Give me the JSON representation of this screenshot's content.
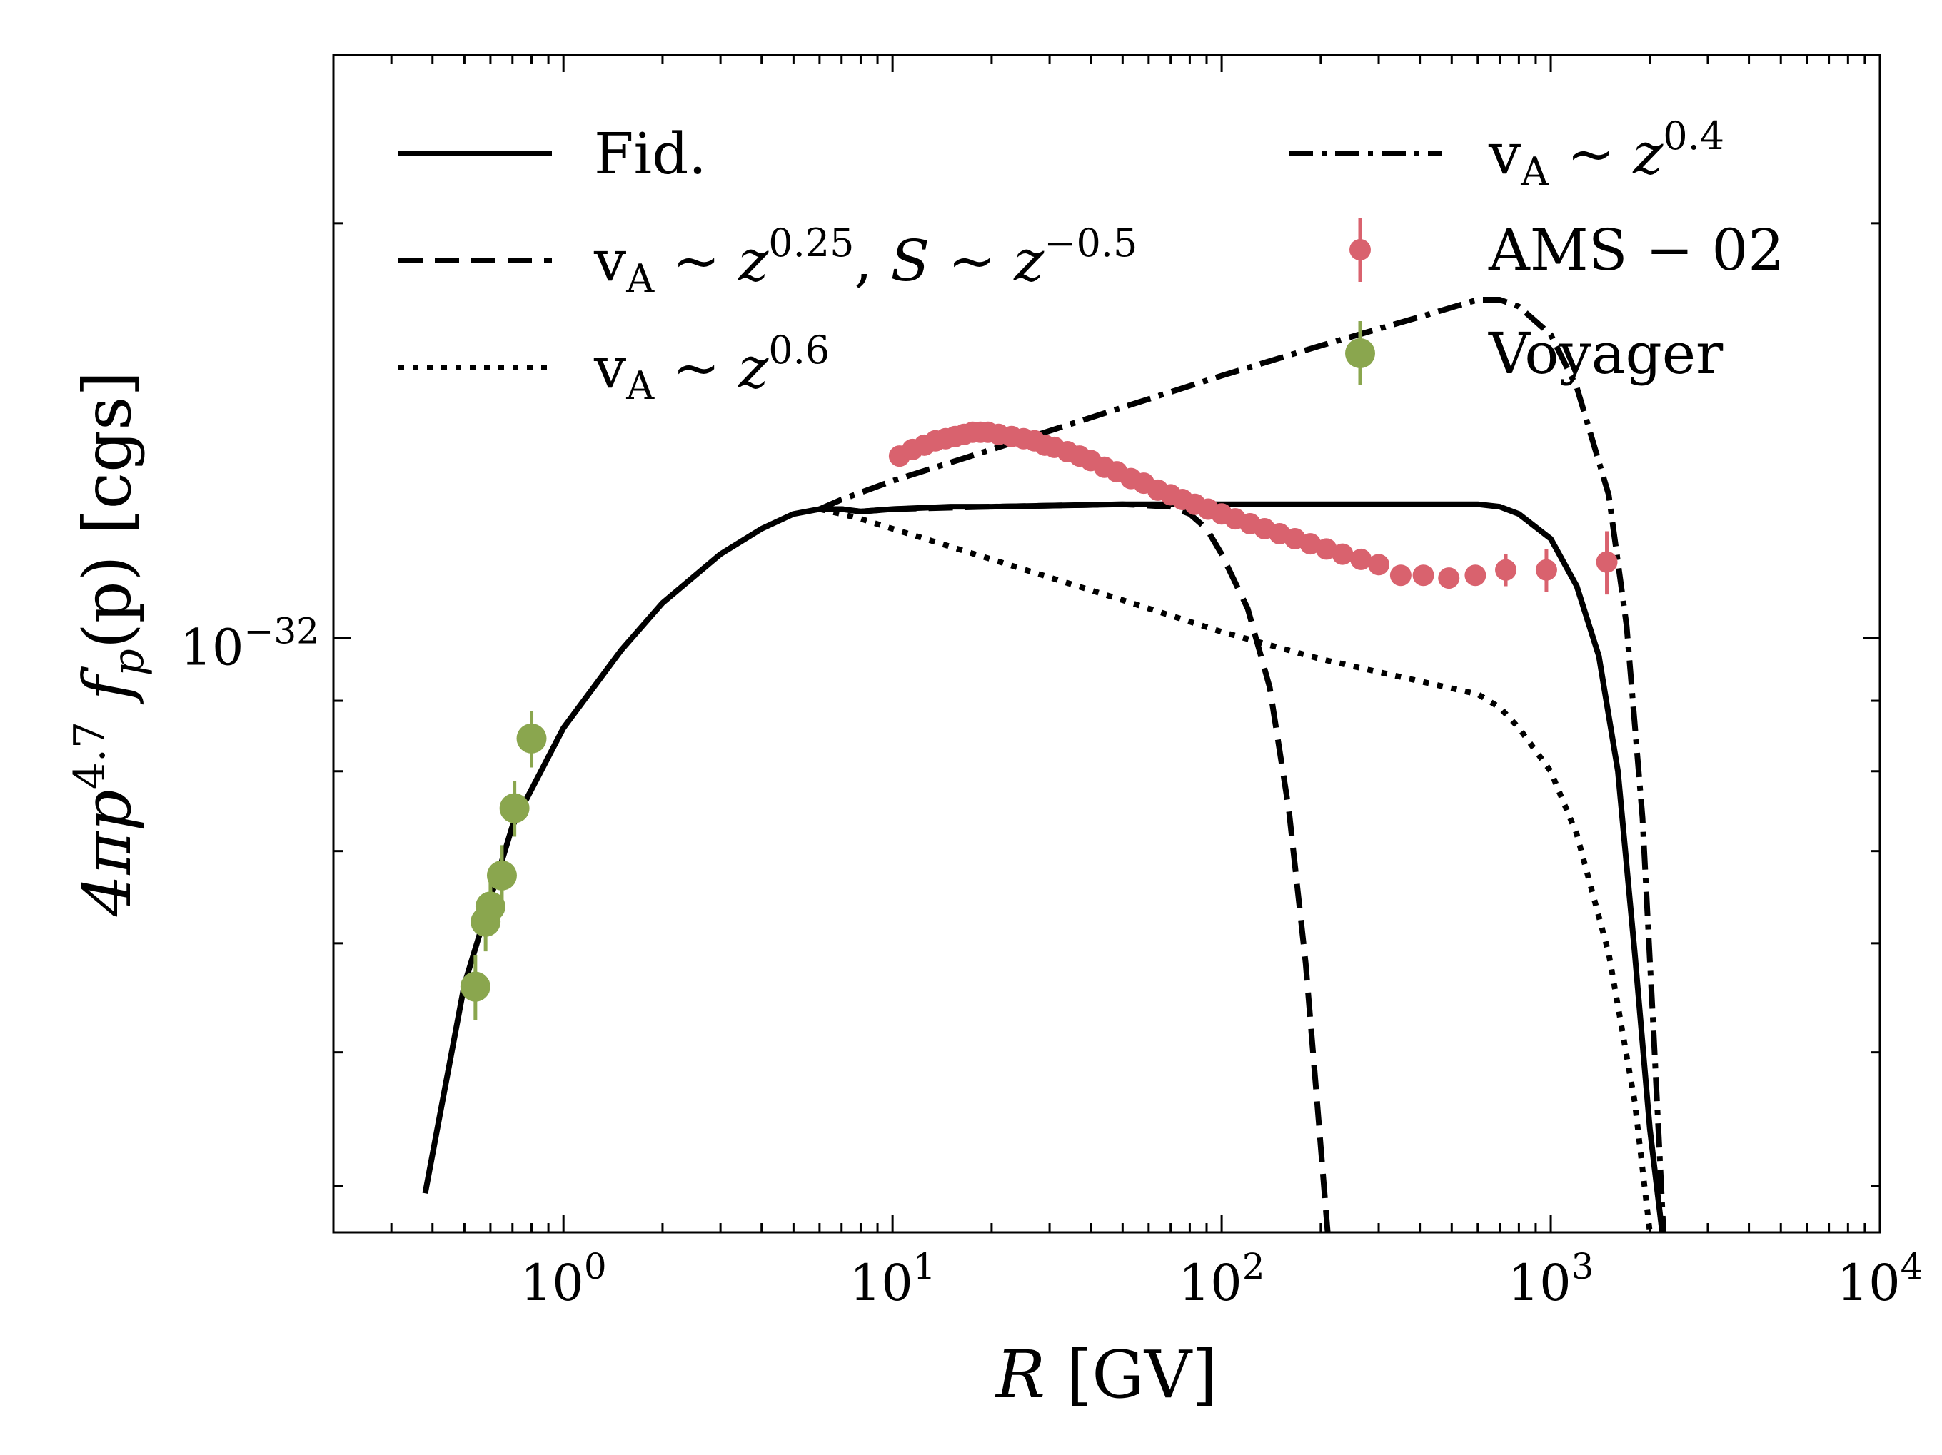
{
  "chart_data": {
    "type": "line",
    "title": "",
    "xlabel": "R [GV]",
    "ylabel": "4πp^4.7 f_p(p) [cgs]",
    "xscale": "log",
    "yscale": "log",
    "xlim": [
      0.2,
      10000
    ],
    "ylim": [
      3.7e-33,
      2.65e-32
    ],
    "grid": false,
    "legend_placement": "top",
    "x_ticks": [
      {
        "value": 1,
        "label": "10^0"
      },
      {
        "value": 10,
        "label": "10^1"
      },
      {
        "value": 100,
        "label": "10^2"
      },
      {
        "value": 1000,
        "label": "10^3"
      },
      {
        "value": 10000,
        "label": "10^4"
      }
    ],
    "y_ticks": [
      {
        "value": 1e-32,
        "label": "10^-32"
      }
    ],
    "series": [
      {
        "name": "Fid.",
        "kind": "line",
        "style": "solid",
        "color": "#000000",
        "points": [
          [
            0.38,
            3.95e-33
          ],
          [
            0.5,
            5.6e-33
          ],
          [
            0.7,
            7.3e-33
          ],
          [
            1.0,
            8.6e-33
          ],
          [
            1.5,
            9.8e-33
          ],
          [
            2.0,
            1.06e-32
          ],
          [
            3.0,
            1.15e-32
          ],
          [
            4.0,
            1.2e-32
          ],
          [
            5.0,
            1.23e-32
          ],
          [
            6.0,
            1.24e-32
          ],
          [
            7.0,
            1.24e-32
          ],
          [
            8.0,
            1.235e-32
          ],
          [
            10,
            1.24e-32
          ],
          [
            15,
            1.245e-32
          ],
          [
            20,
            1.245e-32
          ],
          [
            50,
            1.25e-32
          ],
          [
            100,
            1.25e-32
          ],
          [
            300,
            1.25e-32
          ],
          [
            600,
            1.25e-32
          ],
          [
            700,
            1.245e-32
          ],
          [
            800,
            1.23e-32
          ],
          [
            1000,
            1.18e-32
          ],
          [
            1200,
            1.09e-32
          ],
          [
            1400,
            9.7e-33
          ],
          [
            1600,
            8e-33
          ],
          [
            1800,
            5.9e-33
          ],
          [
            2000,
            4.4e-33
          ],
          [
            2180,
            3.7e-33
          ]
        ]
      },
      {
        "name": "v_A ~ z^0.25, S ~ z^-0.5",
        "kind": "line",
        "style": "dashed",
        "color": "#000000",
        "points": [
          [
            6.0,
            1.24e-32
          ],
          [
            7.0,
            1.24e-32
          ],
          [
            8.0,
            1.235e-32
          ],
          [
            10,
            1.24e-32
          ],
          [
            20,
            1.245e-32
          ],
          [
            50,
            1.25e-32
          ],
          [
            70,
            1.245e-32
          ],
          [
            80,
            1.23e-32
          ],
          [
            90,
            1.2e-32
          ],
          [
            100,
            1.15e-32
          ],
          [
            120,
            1.05e-32
          ],
          [
            140,
            9.2e-33
          ],
          [
            160,
            7.5e-33
          ],
          [
            180,
            5.8e-33
          ],
          [
            195,
            4.6e-33
          ],
          [
            210,
            3.7e-33
          ]
        ]
      },
      {
        "name": "v_A ~ z^0.6",
        "kind": "line",
        "style": "dotted",
        "color": "#000000",
        "points": [
          [
            6.0,
            1.24e-32
          ],
          [
            7.0,
            1.23e-32
          ],
          [
            8.0,
            1.22e-32
          ],
          [
            10,
            1.2e-32
          ],
          [
            20,
            1.14e-32
          ],
          [
            50,
            1.065e-32
          ],
          [
            100,
            1.01e-32
          ],
          [
            200,
            9.65e-33
          ],
          [
            400,
            9.3e-33
          ],
          [
            600,
            9.1e-33
          ],
          [
            700,
            8.9e-33
          ],
          [
            800,
            8.6e-33
          ],
          [
            1000,
            8e-33
          ],
          [
            1200,
            7.2e-33
          ],
          [
            1500,
            5.9e-33
          ],
          [
            1800,
            4.6e-33
          ],
          [
            2000,
            3.7e-33
          ]
        ]
      },
      {
        "name": "v_A ~ z^0.4",
        "kind": "line",
        "style": "dashdot",
        "color": "#000000",
        "points": [
          [
            6.0,
            1.24e-32
          ],
          [
            7.0,
            1.26e-32
          ],
          [
            10,
            1.3e-32
          ],
          [
            20,
            1.37e-32
          ],
          [
            50,
            1.47e-32
          ],
          [
            100,
            1.55e-32
          ],
          [
            200,
            1.63e-32
          ],
          [
            400,
            1.71e-32
          ],
          [
            600,
            1.76e-32
          ],
          [
            700,
            1.76e-32
          ],
          [
            800,
            1.74e-32
          ],
          [
            1000,
            1.66e-32
          ],
          [
            1200,
            1.52e-32
          ],
          [
            1500,
            1.27e-32
          ],
          [
            1700,
            1.02e-32
          ],
          [
            1900,
            7.4e-33
          ],
          [
            2050,
            5.2e-33
          ],
          [
            2200,
            3.7e-33
          ]
        ]
      },
      {
        "name": "AMS − 02",
        "kind": "errorbar",
        "color": "#d9626e",
        "points": [
          [
            10.5,
            1.355e-32
          ],
          [
            11.5,
            1.37e-32
          ],
          [
            12.5,
            1.38e-32
          ],
          [
            13.5,
            1.39e-32
          ],
          [
            14.5,
            1.395e-32
          ],
          [
            15.5,
            1.4e-32
          ],
          [
            16.5,
            1.405e-32
          ],
          [
            17.5,
            1.41e-32
          ],
          [
            18.5,
            1.41e-32
          ],
          [
            19.5,
            1.41e-32
          ],
          [
            21,
            1.405e-32
          ],
          [
            23,
            1.4e-32
          ],
          [
            25,
            1.395e-32
          ],
          [
            27,
            1.39e-32
          ],
          [
            29,
            1.38e-32
          ],
          [
            31,
            1.375e-32
          ],
          [
            34,
            1.365e-32
          ],
          [
            37,
            1.355e-32
          ],
          [
            40,
            1.345e-32
          ],
          [
            44,
            1.33e-32
          ],
          [
            48,
            1.32e-32
          ],
          [
            53,
            1.305e-32
          ],
          [
            58,
            1.295e-32
          ],
          [
            64,
            1.28e-32
          ],
          [
            70,
            1.27e-32
          ],
          [
            76,
            1.26e-32
          ],
          [
            83,
            1.25e-32
          ],
          [
            91,
            1.24e-32
          ],
          [
            100,
            1.23e-32
          ],
          [
            110,
            1.22e-32
          ],
          [
            122,
            1.21e-32
          ],
          [
            135,
            1.2e-32
          ],
          [
            150,
            1.19e-32
          ],
          [
            167,
            1.18e-32
          ],
          [
            186,
            1.17e-32
          ],
          [
            208,
            1.16e-32
          ],
          [
            233,
            1.15e-32
          ],
          [
            265,
            1.14e-32
          ],
          [
            300,
            1.13e-32
          ],
          [
            350,
            1.11e-32
          ],
          [
            410,
            1.11e-32
          ],
          [
            490,
            1.105e-32
          ],
          [
            590,
            1.11e-32
          ],
          [
            730,
            1.12e-32
          ],
          [
            970,
            1.12e-32
          ],
          [
            1480,
            1.135e-32
          ]
        ],
        "errors": [
          0,
          0,
          0,
          0,
          0,
          0,
          0,
          0,
          0,
          0,
          0,
          0,
          0,
          0,
          0,
          0,
          0,
          0,
          0,
          0,
          0,
          0,
          0,
          0,
          0,
          0,
          0,
          0,
          0,
          0,
          0,
          0,
          0,
          0,
          0,
          0,
          0,
          0,
          0,
          0,
          0,
          0,
          0,
          3e-34,
          4e-34,
          6e-34
        ]
      },
      {
        "name": "Voyager",
        "kind": "errorbar",
        "color": "#8aa64e",
        "points": [
          [
            0.54,
            5.58e-33
          ],
          [
            0.58,
            6.22e-33
          ],
          [
            0.6,
            6.38e-33
          ],
          [
            0.65,
            6.72e-33
          ],
          [
            0.71,
            7.52e-33
          ],
          [
            0.8,
            8.45e-33
          ]
        ],
        "errors": [
          3e-34,
          3e-34,
          3e-34,
          3.5e-34,
          3.5e-34,
          4e-34
        ]
      }
    ],
    "legend": [
      {
        "label": "Fid.",
        "series": 0
      },
      {
        "label": "v_A ~ z^0.25, S ~ z^-0.5",
        "series": 1
      },
      {
        "label": "v_A ~ z^0.6",
        "series": 2
      },
      {
        "label": "v_A ~ z^0.4",
        "series": 3
      },
      {
        "label": "AMS − 02",
        "series": 4
      },
      {
        "label": "Voyager",
        "series": 5
      }
    ]
  }
}
